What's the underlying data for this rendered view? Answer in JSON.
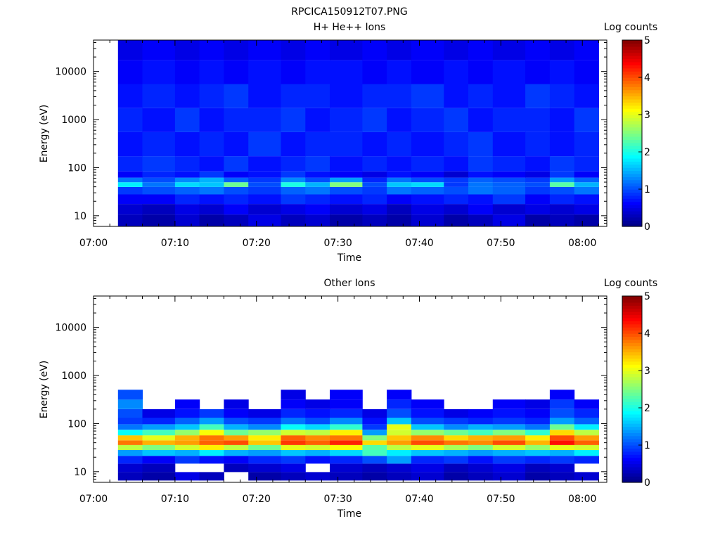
{
  "figure": {
    "title": "RPCICA150912T07.PNG"
  },
  "chart_data": [
    {
      "type": "heatmap",
      "title": "H+ He++ Ions",
      "xlabel": "Time",
      "ylabel": "Energy (eV)",
      "yscale": "log",
      "ylim": [
        6,
        45000
      ],
      "xlim": [
        "07:00",
        "08:03"
      ],
      "xticks": [
        "07:00",
        "07:10",
        "07:20",
        "07:30",
        "07:40",
        "07:50",
        "08:00"
      ],
      "yticks": [
        "10",
        "100",
        "1000",
        "10000"
      ],
      "colorbar": {
        "label": "Log counts",
        "range": [
          0,
          5
        ],
        "ticks": [
          "0",
          "1",
          "2",
          "3",
          "4",
          "5"
        ]
      },
      "time_columns": [
        "07:03",
        "07:06",
        "07:10",
        "07:13",
        "07:16",
        "07:19",
        "07:23",
        "07:26",
        "07:29",
        "07:33",
        "07:36",
        "07:39",
        "07:43",
        "07:46",
        "07:49",
        "07:53",
        "07:56",
        "07:59"
      ],
      "energy_bins": [
        8,
        14,
        22,
        35,
        45,
        55,
        70,
        100,
        300,
        1000,
        3000,
        10000,
        30000
      ],
      "values": [
        [
          0.3,
          0.2,
          0.4,
          0.2,
          0.3,
          0.5,
          0.3,
          0.4,
          0.2,
          0.3,
          0.2,
          0.4,
          0.2,
          0.3,
          0.5,
          0.2,
          0.3,
          0.2
        ],
        [
          0.4,
          0.3,
          0.5,
          0.4,
          0.6,
          0.4,
          0.5,
          0.6,
          0.4,
          0.5,
          0.3,
          0.5,
          0.4,
          0.6,
          0.4,
          0.5,
          0.4,
          0.5
        ],
        [
          0.6,
          0.6,
          0.8,
          0.7,
          0.8,
          0.7,
          0.9,
          0.8,
          0.7,
          0.8,
          0.6,
          0.7,
          0.8,
          0.7,
          0.9,
          0.6,
          0.8,
          0.7
        ],
        [
          0.9,
          1.0,
          1.1,
          1.2,
          1.0,
          0.9,
          1.1,
          1.2,
          1.0,
          0.9,
          1.2,
          1.1,
          1.0,
          1.2,
          1.1,
          0.9,
          1.0,
          1.2
        ],
        [
          1.8,
          1.2,
          1.7,
          1.6,
          2.4,
          1.0,
          2.0,
          1.5,
          2.5,
          1.0,
          1.6,
          1.7,
          0.9,
          1.2,
          1.1,
          1.0,
          2.3,
          1.5
        ],
        [
          1.2,
          1.0,
          1.3,
          1.5,
          1.1,
          0.9,
          1.3,
          1.0,
          1.4,
          0.8,
          1.2,
          1.0,
          0.9,
          1.1,
          1.0,
          0.9,
          1.4,
          1.1
        ],
        [
          0.6,
          0.8,
          0.7,
          0.9,
          0.6,
          0.7,
          0.9,
          0.7,
          0.6,
          0.5,
          0.7,
          0.6,
          0.4,
          0.7,
          0.6,
          0.5,
          0.9,
          0.6
        ],
        [
          0.8,
          0.9,
          0.8,
          0.7,
          0.9,
          0.7,
          0.8,
          0.9,
          0.7,
          0.8,
          0.7,
          0.8,
          0.7,
          0.9,
          0.8,
          0.7,
          0.9,
          0.8
        ],
        [
          0.7,
          0.8,
          0.7,
          0.8,
          0.7,
          0.9,
          0.7,
          0.8,
          0.8,
          0.7,
          0.8,
          0.7,
          0.8,
          0.9,
          0.7,
          0.8,
          0.7,
          0.8
        ],
        [
          0.8,
          0.7,
          0.9,
          0.7,
          0.8,
          0.8,
          0.9,
          0.7,
          0.8,
          0.9,
          0.7,
          0.8,
          0.9,
          0.7,
          0.8,
          0.8,
          0.7,
          0.9
        ],
        [
          0.7,
          0.8,
          0.7,
          0.8,
          0.9,
          0.7,
          0.8,
          0.8,
          0.7,
          0.8,
          0.8,
          0.9,
          0.7,
          0.8,
          0.7,
          0.9,
          0.8,
          0.7
        ],
        [
          0.6,
          0.7,
          0.6,
          0.7,
          0.6,
          0.7,
          0.6,
          0.7,
          0.7,
          0.6,
          0.7,
          0.6,
          0.7,
          0.6,
          0.7,
          0.6,
          0.7,
          0.6
        ],
        [
          0.5,
          0.6,
          0.5,
          0.6,
          0.5,
          0.6,
          0.5,
          0.6,
          0.5,
          0.6,
          0.5,
          0.6,
          0.5,
          0.6,
          0.5,
          0.6,
          0.5,
          0.6
        ]
      ]
    },
    {
      "type": "heatmap",
      "title": "Other Ions",
      "xlabel": "Time",
      "ylabel": "Energy (eV)",
      "yscale": "log",
      "ylim": [
        6,
        45000
      ],
      "xlim": [
        "07:00",
        "08:03"
      ],
      "xticks": [
        "07:00",
        "07:10",
        "07:20",
        "07:30",
        "07:40",
        "07:50",
        "08:00"
      ],
      "yticks": [
        "10",
        "100",
        "1000",
        "10000"
      ],
      "colorbar": {
        "label": "Log counts",
        "range": [
          0,
          5
        ],
        "ticks": [
          "0",
          "1",
          "2",
          "3",
          "4",
          "5"
        ]
      },
      "time_columns": [
        "07:03",
        "07:06",
        "07:10",
        "07:13",
        "07:16",
        "07:19",
        "07:23",
        "07:26",
        "07:29",
        "07:33",
        "07:36",
        "07:39",
        "07:43",
        "07:46",
        "07:49",
        "07:53",
        "07:56",
        "07:59"
      ],
      "energy_bins": [
        8,
        12,
        18,
        25,
        32,
        40,
        50,
        65,
        85,
        110,
        160,
        250,
        400
      ],
      "values": [
        [
          0.3,
          0.2,
          0.5,
          0.3,
          null,
          0.2,
          0.3,
          0.4,
          0.3,
          0.2,
          0.3,
          0.4,
          0.2,
          0.3,
          0.4,
          0.2,
          0.3,
          0.4
        ],
        [
          0.4,
          0.3,
          null,
          null,
          0.3,
          0.4,
          0.5,
          null,
          0.4,
          0.3,
          0.4,
          0.5,
          0.3,
          0.4,
          0.5,
          0.3,
          0.4,
          null
        ],
        [
          0.8,
          0.6,
          0.9,
          0.7,
          0.6,
          0.8,
          0.9,
          0.7,
          0.8,
          1.0,
          1.4,
          0.8,
          0.9,
          0.7,
          0.9,
          0.8,
          0.9,
          0.8
        ],
        [
          1.4,
          1.6,
          1.5,
          1.8,
          1.5,
          1.4,
          1.6,
          1.5,
          1.7,
          2.2,
          1.8,
          1.6,
          1.5,
          1.4,
          1.5,
          1.6,
          1.5,
          1.8
        ],
        [
          2.8,
          2.5,
          2.9,
          3.2,
          2.8,
          2.4,
          3.0,
          2.9,
          3.1,
          2.3,
          2.8,
          3.0,
          2.7,
          2.5,
          2.9,
          2.6,
          3.0,
          2.9
        ],
        [
          3.8,
          3.5,
          3.6,
          3.9,
          4.0,
          3.4,
          4.1,
          3.9,
          4.2,
          3.3,
          3.6,
          4.0,
          3.8,
          3.7,
          4.0,
          3.5,
          4.3,
          3.9
        ],
        [
          3.4,
          3.0,
          3.5,
          3.8,
          3.6,
          3.2,
          3.9,
          3.7,
          3.8,
          2.5,
          3.4,
          3.7,
          3.3,
          3.5,
          3.6,
          3.2,
          4.0,
          3.6
        ],
        [
          1.9,
          2.2,
          2.6,
          3.1,
          2.4,
          2.6,
          2.9,
          2.8,
          3.2,
          1.4,
          2.9,
          2.6,
          2.4,
          2.2,
          2.5,
          2.1,
          3.3,
          2.8
        ],
        [
          1.2,
          1.4,
          1.6,
          2.2,
          1.5,
          1.3,
          1.9,
          1.7,
          2.1,
          0.9,
          3.0,
          1.6,
          1.3,
          1.5,
          1.4,
          1.2,
          2.4,
          1.8
        ],
        [
          0.9,
          0.8,
          1.1,
          1.4,
          1.0,
          0.9,
          1.2,
          1.0,
          1.3,
          0.7,
          1.6,
          1.0,
          0.9,
          0.8,
          0.9,
          0.8,
          1.4,
          1.1
        ],
        [
          1.0,
          0.5,
          0.7,
          0.9,
          0.6,
          0.5,
          0.8,
          0.7,
          0.8,
          0.5,
          1.0,
          0.7,
          0.5,
          0.6,
          0.7,
          0.6,
          1.0,
          0.8
        ],
        [
          1.3,
          null,
          0.6,
          null,
          0.5,
          null,
          0.6,
          0.5,
          0.6,
          null,
          0.8,
          0.6,
          null,
          null,
          0.6,
          0.5,
          0.9,
          0.6
        ],
        [
          1.0,
          null,
          null,
          null,
          null,
          null,
          0.5,
          null,
          0.6,
          null,
          0.6,
          null,
          null,
          null,
          null,
          null,
          0.6,
          null
        ]
      ]
    }
  ]
}
